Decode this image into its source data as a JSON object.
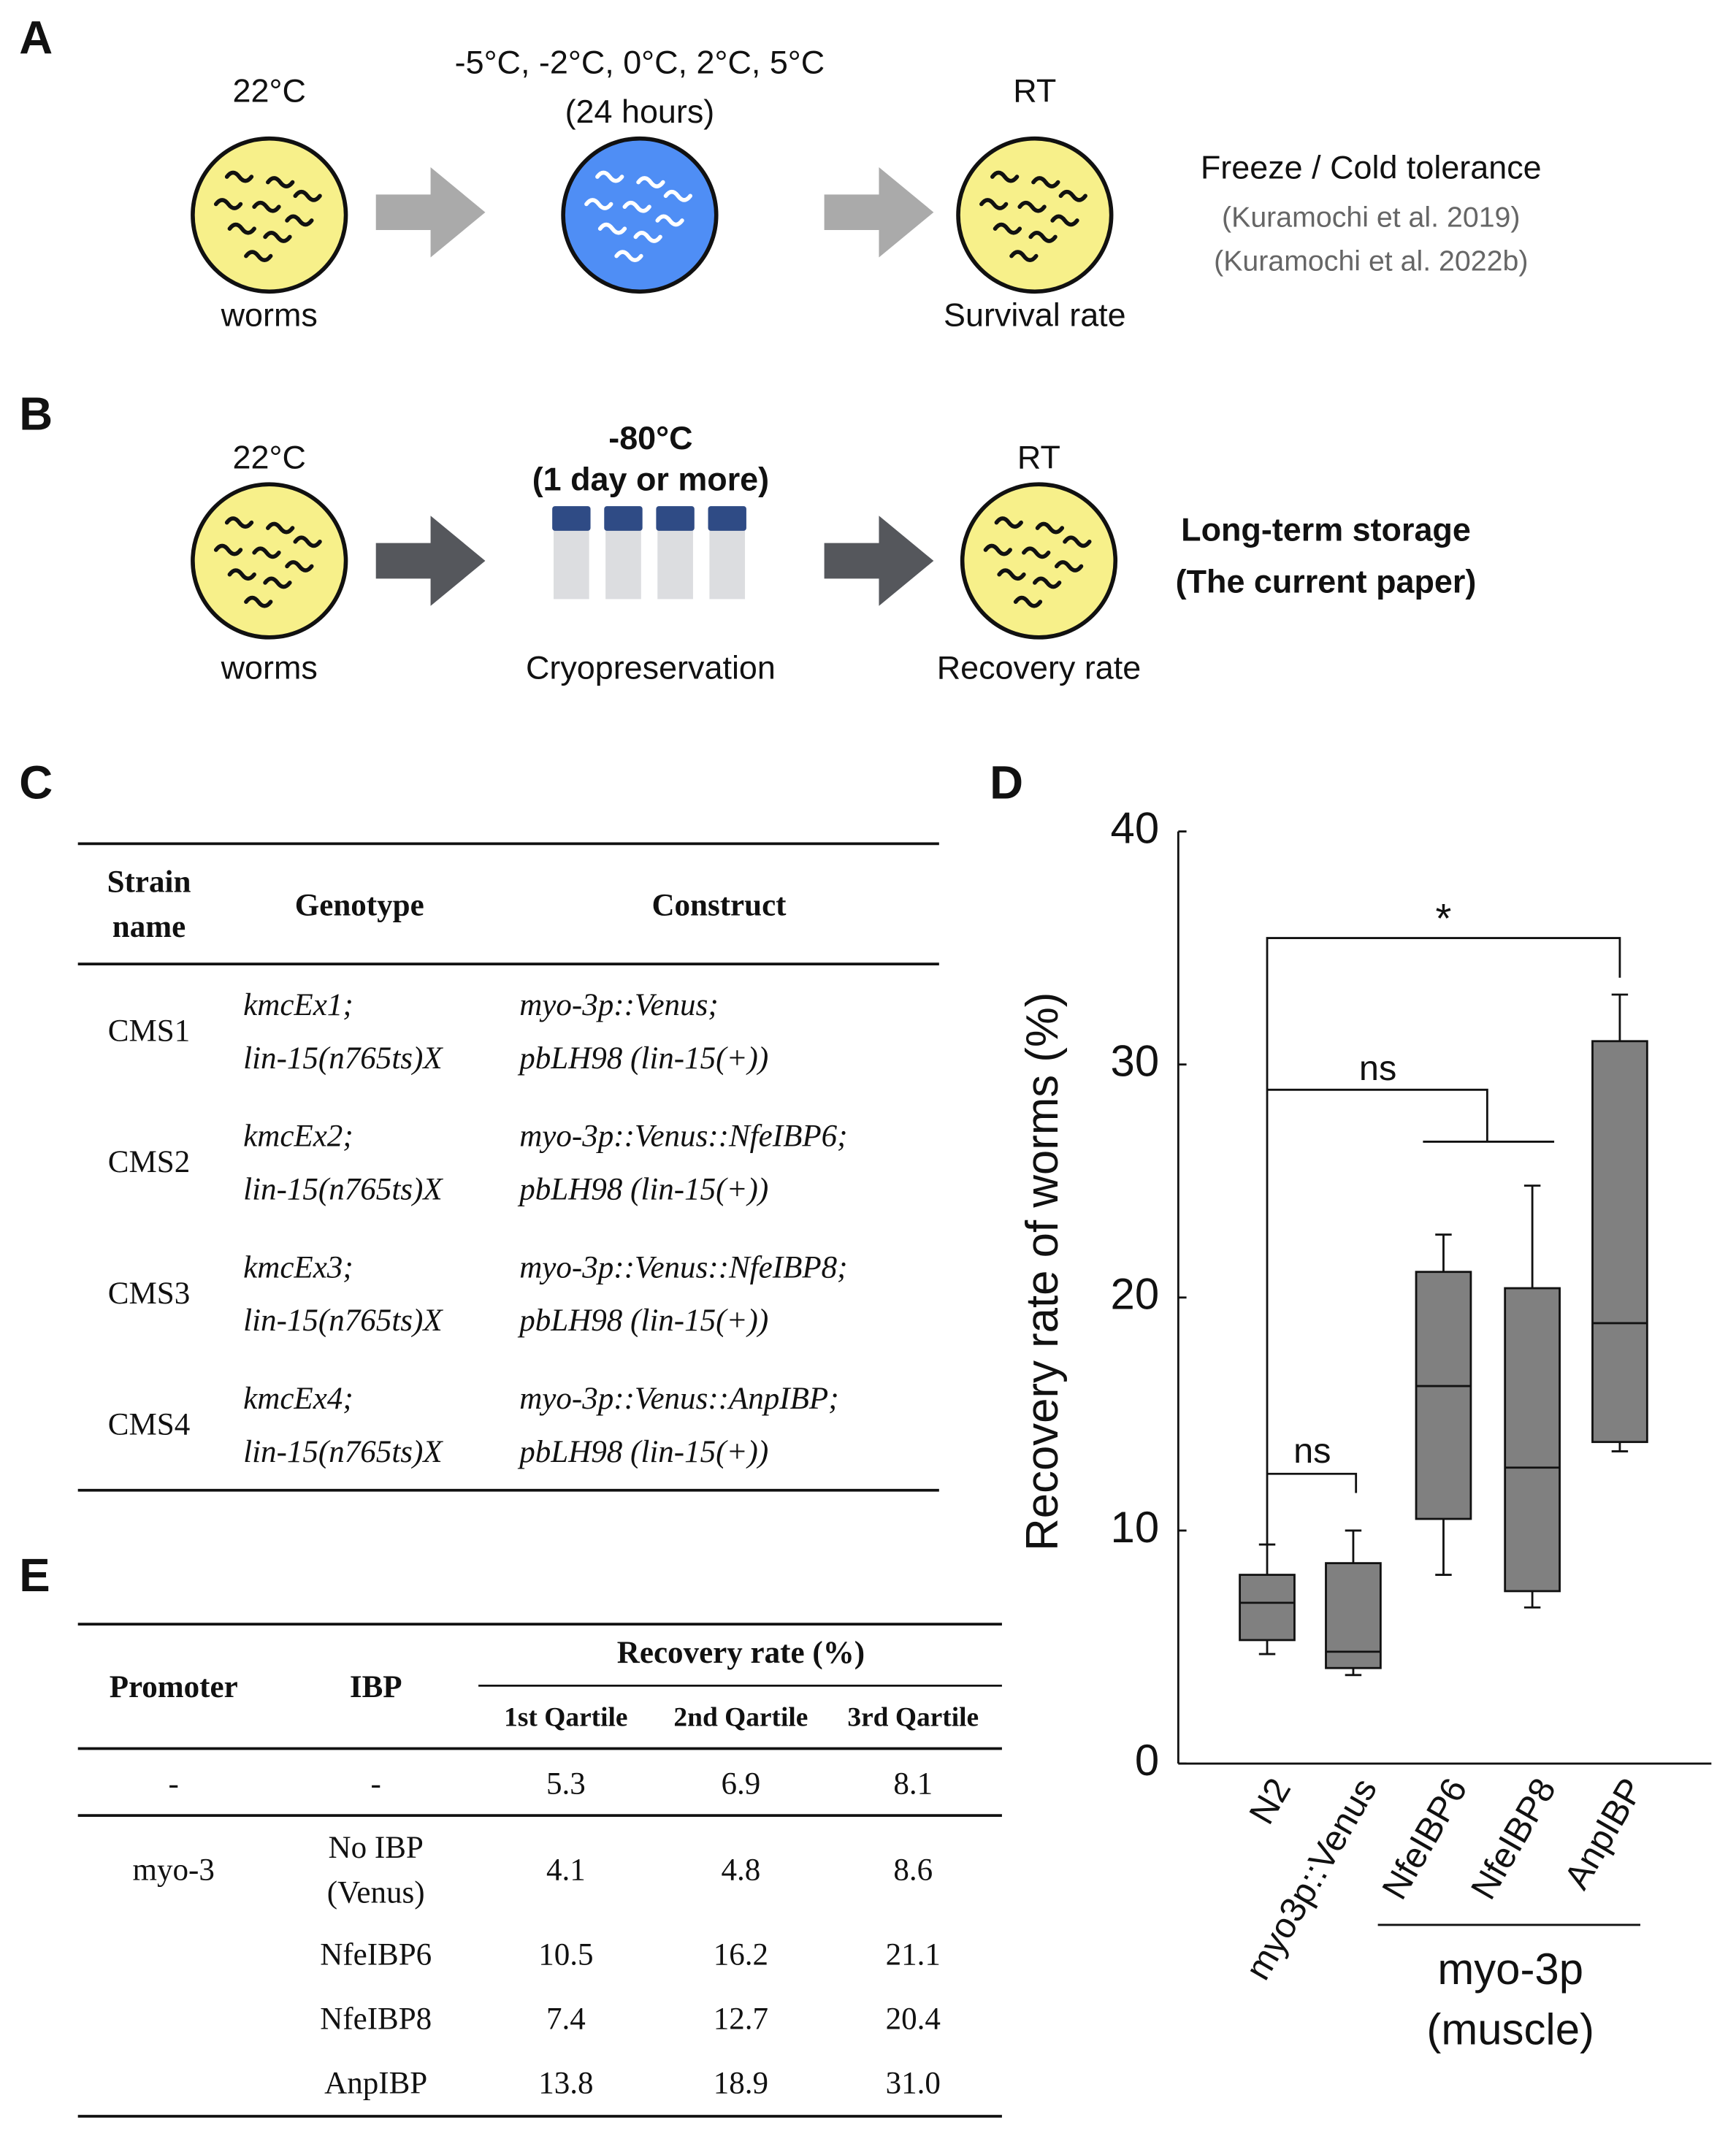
{
  "panel_a": {
    "label": "A",
    "start_temp": "22°C",
    "start_caption": "worms",
    "conditions": "-5°C, -2°C, 0°C, 2°C, 5°C",
    "duration": "(24 hours)",
    "end_temp": "RT",
    "end_caption": "Survival rate",
    "title": "Freeze / Cold tolerance",
    "refs": [
      "(Kuramochi et al. 2019)",
      "(Kuramochi et al. 2022b)"
    ]
  },
  "panel_b": {
    "label": "B",
    "start_temp": "22°C",
    "start_caption": "worms",
    "storage_temp": "-80°C",
    "duration": "(1 day or more)",
    "middle_caption": "Cryopreservation",
    "end_temp": "RT",
    "end_caption": "Recovery rate",
    "title": "Long-term storage",
    "subtitle": "(The current paper)"
  },
  "panel_c": {
    "label": "C",
    "header": {
      "strain": [
        "Strain",
        "name"
      ],
      "genotype": "Genotype",
      "construct": "Construct"
    },
    "rows": [
      {
        "strain": "CMS1",
        "genotype": [
          "kmcEx1;",
          "lin-15(n765ts)X"
        ],
        "construct": [
          "myo-3p::Venus;",
          "pbLH98 (lin-15(+))"
        ]
      },
      {
        "strain": "CMS2",
        "genotype": [
          "kmcEx2;",
          "lin-15(n765ts)X"
        ],
        "construct": [
          "myo-3p::Venus::NfeIBP6;",
          "pbLH98 (lin-15(+))"
        ]
      },
      {
        "strain": "CMS3",
        "genotype": [
          "kmcEx3;",
          "lin-15(n765ts)X"
        ],
        "construct": [
          "myo-3p::Venus::NfeIBP8;",
          "pbLH98 (lin-15(+))"
        ]
      },
      {
        "strain": "CMS4",
        "genotype": [
          "kmcEx4;",
          "lin-15(n765ts)X"
        ],
        "construct": [
          "myo-3p::Venus::AnpIBP;",
          "pbLH98 (lin-15(+))"
        ]
      }
    ]
  },
  "panel_e": {
    "label": "E",
    "header": {
      "promoter": "Promoter",
      "ibp": "IBP",
      "group": "Recovery rate (%)",
      "columns": [
        "1st Qartile",
        "2nd Qartile",
        "3rd Qartile"
      ]
    },
    "rows": [
      {
        "promoter": "-",
        "ibp": [
          "-"
        ],
        "values": [
          "5.3",
          "6.9",
          "8.1"
        ]
      },
      {
        "promoter": "myo-3",
        "ibp": [
          "No IBP",
          "(Venus)"
        ],
        "values": [
          "4.1",
          "4.8",
          "8.6"
        ]
      },
      {
        "ibp": [
          "NfeIBP6"
        ],
        "values": [
          "10.5",
          "16.2",
          "21.1"
        ]
      },
      {
        "ibp": [
          "NfeIBP8"
        ],
        "values": [
          "7.4",
          "12.7",
          "20.4"
        ]
      },
      {
        "ibp": [
          "AnpIBP"
        ],
        "values": [
          "13.8",
          "18.9",
          "31.0"
        ]
      }
    ]
  },
  "chart_data": {
    "type": "box",
    "panel_label": "D",
    "ylabel": "Recovery rate of worms (%)",
    "categories": [
      "N2",
      "myo3p::Venus",
      "NfeIBP6",
      "NfeIBP8",
      "AnpIBP"
    ],
    "whisker_low": [
      4.7,
      3.8,
      8.1,
      6.7,
      13.4
    ],
    "q1": [
      5.3,
      4.1,
      10.5,
      7.4,
      13.8
    ],
    "median": [
      6.9,
      4.8,
      16.2,
      12.7,
      18.9
    ],
    "q3": [
      8.1,
      8.6,
      21.1,
      20.4,
      31.0
    ],
    "whisker_high": [
      9.4,
      10.0,
      22.7,
      24.8,
      33.0
    ],
    "color": "#808080",
    "ylim": [
      0,
      40
    ],
    "yticks": [
      0,
      10,
      20,
      30,
      40
    ],
    "group_label": [
      "myo-3p",
      "(muscle)"
    ],
    "annotations": [
      "ns",
      "ns",
      "*"
    ]
  }
}
